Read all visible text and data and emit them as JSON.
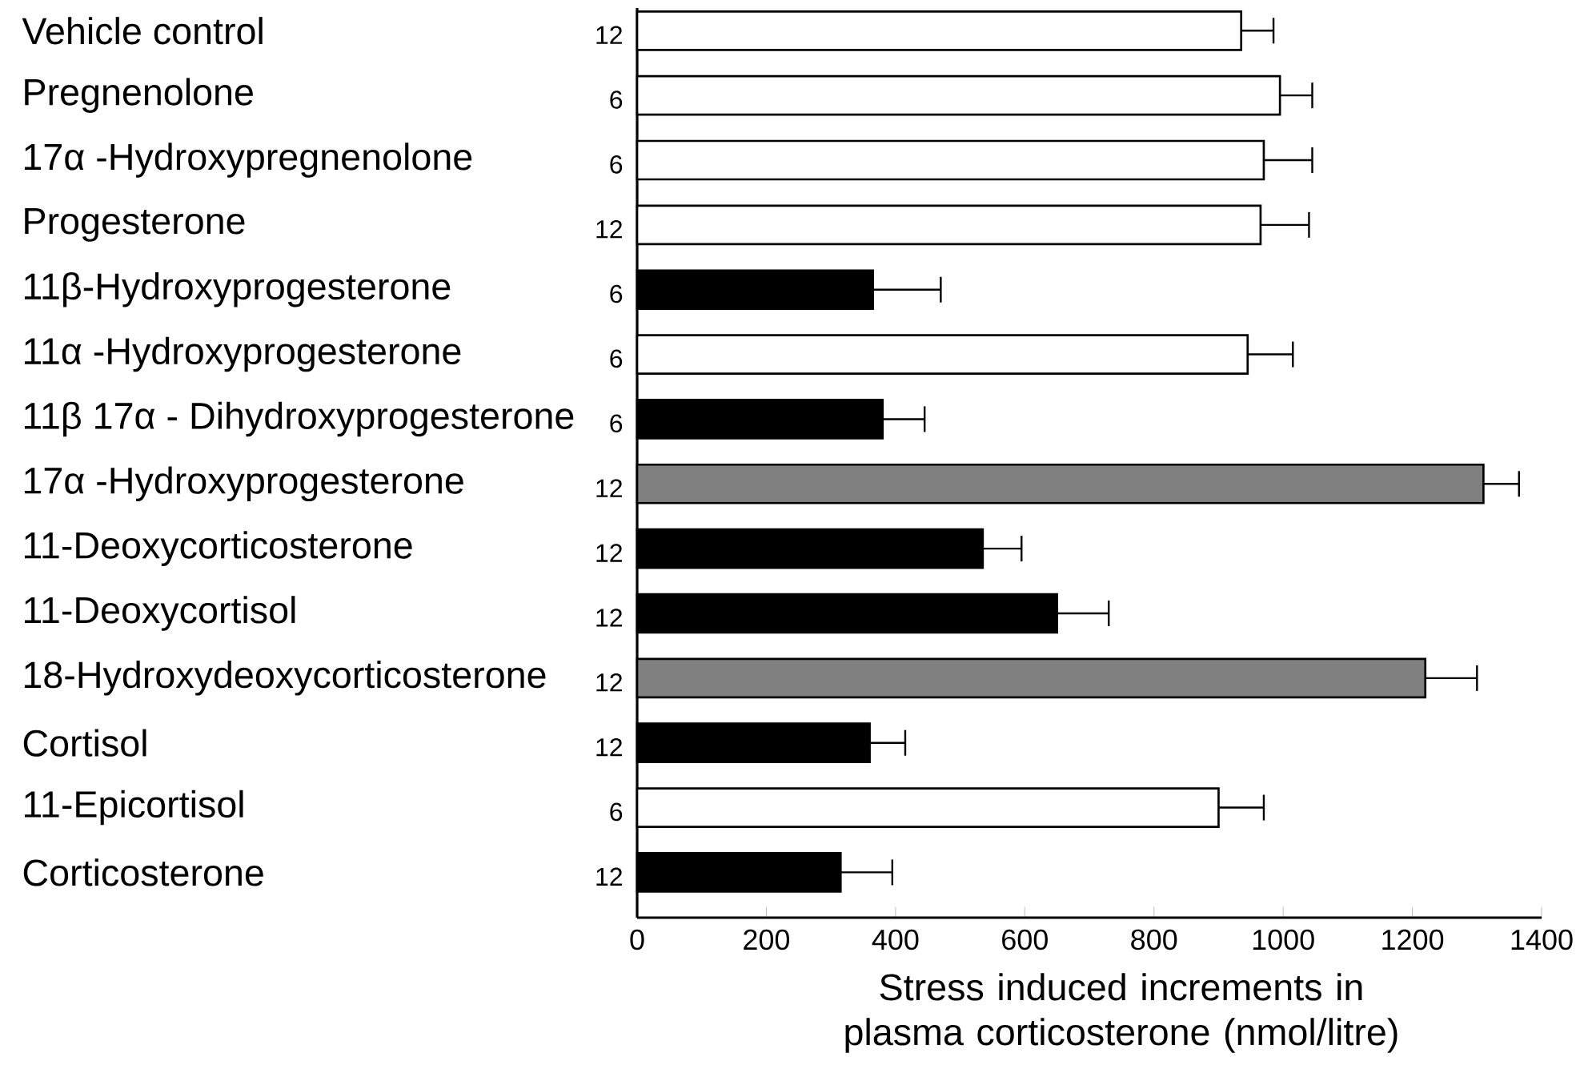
{
  "chart_data": {
    "type": "bar",
    "orientation": "horizontal",
    "xlabel": "Stress induced increments in plasma corticosterone  (nmol/litre)",
    "categories": [
      "Vehicle control",
      "Pregnenolone",
      "17α -Hydroxypregnenolone",
      "Progesterone",
      "11β-Hydroxyprogesterone",
      "11α -Hydroxyprogesterone",
      "11β 17α - Dihydroxyprogesterone",
      "17α -Hydroxyprogesterone",
      "11-Deoxycorticosterone",
      "11-Deoxycortisol",
      "18-Hydroxydeoxycorticosterone",
      "Cortisol",
      "11-Epicortisol",
      "Corticosterone"
    ],
    "values": [
      935,
      995,
      970,
      965,
      365,
      945,
      380,
      1310,
      535,
      650,
      1220,
      360,
      900,
      315
    ],
    "colors": [
      "#ffffff",
      "#ffffff",
      "#ffffff",
      "#ffffff",
      "#000000",
      "#ffffff",
      "#000000",
      "#808080",
      "#000000",
      "#000000",
      "#808080",
      "#000000",
      "#ffffff",
      "#000000"
    ],
    "errors": [
      [
        935,
        985
      ],
      [
        995,
        1045
      ],
      [
        970,
        1045
      ],
      [
        965,
        1040
      ],
      [
        365,
        470
      ],
      [
        945,
        1015
      ],
      [
        380,
        445
      ],
      [
        1310,
        1365
      ],
      [
        535,
        595
      ],
      [
        650,
        730
      ],
      [
        1220,
        1300
      ],
      [
        360,
        415
      ],
      [
        900,
        970
      ],
      [
        315,
        395
      ]
    ],
    "xlim": [
      0,
      1400
    ],
    "xticks": [
      0,
      200,
      400,
      600,
      800,
      1000,
      1200,
      1400
    ],
    "annotations": [
      "12",
      "6",
      "6",
      "12",
      "6",
      "6",
      "6",
      "12",
      "12",
      "12",
      "12",
      "12",
      "6",
      "12"
    ]
  }
}
